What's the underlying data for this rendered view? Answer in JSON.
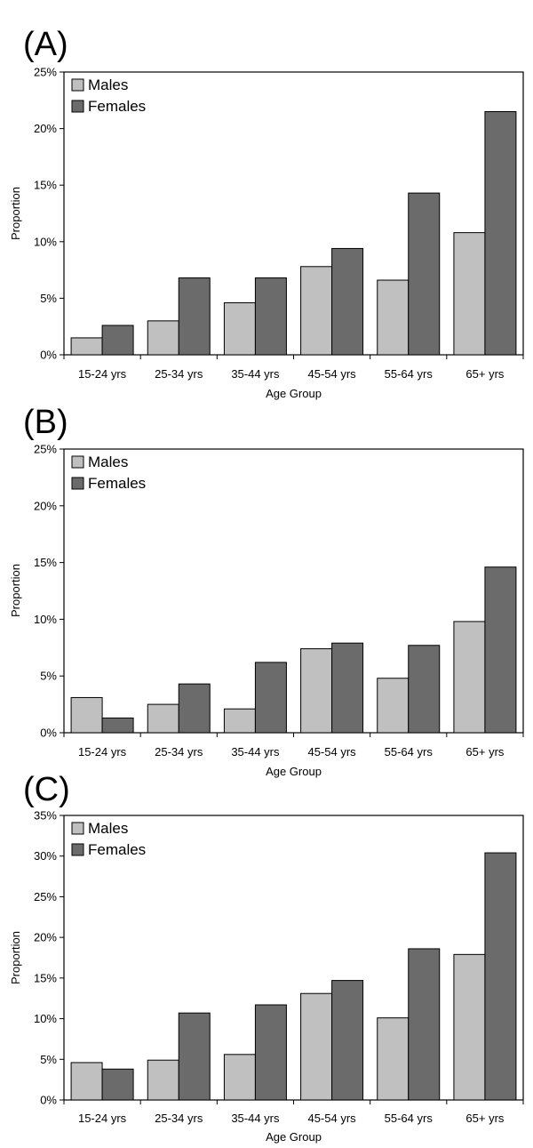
{
  "chart_data": [
    {
      "type": "bar",
      "panel_label": "(A)",
      "categories": [
        "15-24 yrs",
        "25-34 yrs",
        "35-44 yrs",
        "45-54 yrs",
        "55-64 yrs",
        "65+ yrs"
      ],
      "series": [
        {
          "name": "Males",
          "color": "#c0c0c0",
          "values": [
            1.5,
            3.0,
            4.6,
            7.8,
            6.6,
            10.8
          ]
        },
        {
          "name": "Females",
          "color": "#6b6b6b",
          "values": [
            2.6,
            6.8,
            6.8,
            9.4,
            14.3,
            21.5
          ]
        }
      ],
      "xlabel": "Age Group",
      "ylabel": "Proportion",
      "ylim": [
        0,
        25
      ],
      "yticks": [
        0,
        5,
        10,
        15,
        20,
        25
      ],
      "ytick_labels": [
        "0%",
        "5%",
        "10%",
        "15%",
        "20%",
        "25%"
      ],
      "legend": "top-left",
      "grid": false
    },
    {
      "type": "bar",
      "panel_label": "(B)",
      "categories": [
        "15-24 yrs",
        "25-34 yrs",
        "35-44 yrs",
        "45-54 yrs",
        "55-64 yrs",
        "65+ yrs"
      ],
      "series": [
        {
          "name": "Males",
          "color": "#c0c0c0",
          "values": [
            3.1,
            2.5,
            2.1,
            7.4,
            4.8,
            9.8
          ]
        },
        {
          "name": "Females",
          "color": "#6b6b6b",
          "values": [
            1.3,
            4.3,
            6.2,
            7.9,
            7.7,
            14.6
          ]
        }
      ],
      "xlabel": "Age Group",
      "ylabel": "Proportion",
      "ylim": [
        0,
        25
      ],
      "yticks": [
        0,
        5,
        10,
        15,
        20,
        25
      ],
      "ytick_labels": [
        "0%",
        "5%",
        "10%",
        "15%",
        "20%",
        "25%"
      ],
      "legend": "top-left",
      "grid": false
    },
    {
      "type": "bar",
      "panel_label": "(C)",
      "categories": [
        "15-24 yrs",
        "25-34 yrs",
        "35-44 yrs",
        "45-54 yrs",
        "55-64 yrs",
        "65+ yrs"
      ],
      "series": [
        {
          "name": "Males",
          "color": "#c0c0c0",
          "values": [
            4.6,
            4.9,
            5.6,
            13.1,
            10.1,
            17.9
          ]
        },
        {
          "name": "Females",
          "color": "#6b6b6b",
          "values": [
            3.8,
            10.7,
            11.7,
            14.7,
            18.6,
            30.4
          ]
        }
      ],
      "xlabel": "Age Group",
      "ylabel": "Proportion",
      "ylim": [
        0,
        35
      ],
      "yticks": [
        0,
        5,
        10,
        15,
        20,
        25,
        30,
        35
      ],
      "ytick_labels": [
        "0%",
        "5%",
        "10%",
        "15%",
        "20%",
        "25%",
        "30%",
        "35%"
      ],
      "legend": "top-left",
      "grid": false
    }
  ]
}
